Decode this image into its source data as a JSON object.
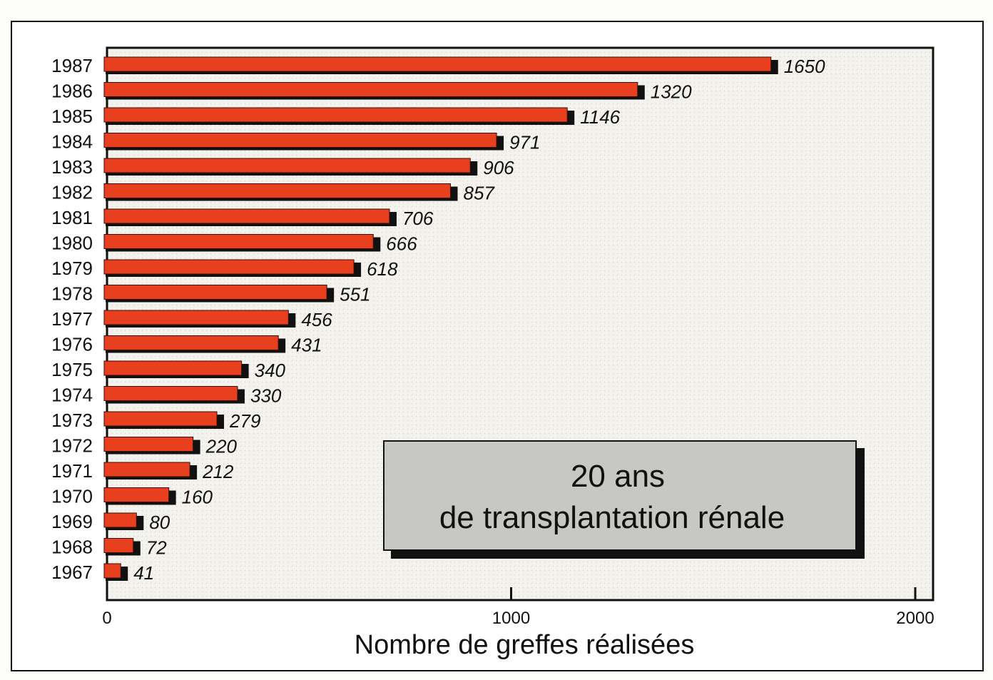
{
  "chart_data": {
    "type": "bar",
    "orientation": "horizontal",
    "categories": [
      "1987",
      "1986",
      "1985",
      "1984",
      "1983",
      "1982",
      "1981",
      "1980",
      "1979",
      "1978",
      "1977",
      "1976",
      "1975",
      "1974",
      "1973",
      "1972",
      "1971",
      "1970",
      "1969",
      "1968",
      "1967"
    ],
    "values": [
      1650,
      1320,
      1146,
      971,
      906,
      857,
      706,
      666,
      618,
      551,
      456,
      431,
      340,
      330,
      279,
      220,
      212,
      160,
      80,
      72,
      41
    ],
    "value_labels": [
      "1650",
      "1320",
      "1146",
      "971",
      "906",
      "857",
      "706",
      "666",
      "618",
      "551",
      "456",
      "431",
      "340",
      "330",
      "279",
      "220",
      "212",
      "160",
      "80",
      "72",
      "41"
    ],
    "title": "20 ans de transplantation rénale",
    "title_lines": [
      "20 ans",
      "de transplantation rénale"
    ],
    "xlabel": "Nombre de greffes réalisées",
    "ylabel": "",
    "xlim": [
      0,
      2000
    ],
    "xticks": [
      0,
      1000,
      2000
    ],
    "xtick_labels": [
      "0",
      "1000",
      "2000"
    ],
    "grid": false,
    "colors": {
      "bar": "#e8401e",
      "bar_shadow": "#111111",
      "title_box": "#c7c7c3",
      "plot_background": "#f3f1ec"
    }
  }
}
